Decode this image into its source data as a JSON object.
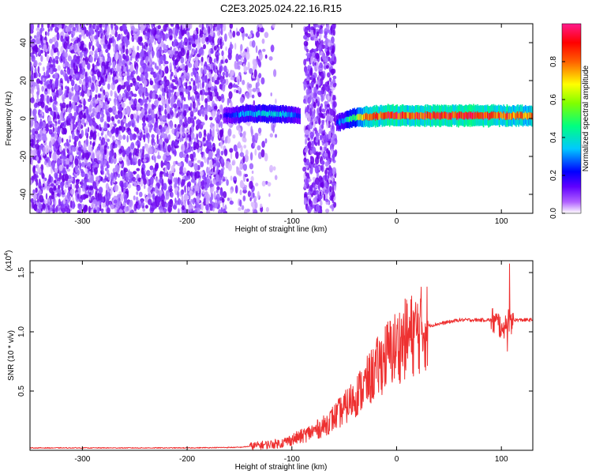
{
  "figure": {
    "title": "C2E3.2025.024.22.16.R15"
  },
  "chart_data": [
    {
      "type": "heatmap",
      "title": "C2E3.2025.024.22.16.R15",
      "xlabel": "Height of straight line (km)",
      "ylabel": "Frequency (Hz)",
      "xlim": [
        -350,
        130
      ],
      "ylim": [
        -50,
        50
      ],
      "xticks": [
        -300,
        -200,
        -100,
        0,
        100
      ],
      "xtick_labels": [
        "-300",
        "-200",
        "-100",
        "0",
        "100"
      ],
      "yticks": [
        -40,
        -20,
        0,
        20,
        40
      ],
      "ytick_labels": [
        "-40",
        "-20",
        "0",
        "20",
        "40"
      ],
      "colorbar": {
        "label": "Normalized spectral amplitude",
        "range": [
          0,
          1
        ],
        "ticks": [
          0.0,
          0.2,
          0.4,
          0.6,
          0.8
        ],
        "tick_labels": [
          "0.0",
          "0.2",
          "0.4",
          "0.6",
          "0.8"
        ],
        "colors": [
          "#ffffff",
          "#8a00ff",
          "#0000ff",
          "#00c8ff",
          "#00ff60",
          "#ffff00",
          "#ff6000",
          "#ff0000",
          "#ff1493"
        ]
      },
      "ridge": [
        {
          "x": -165,
          "y": 1.5,
          "amp": 0.25
        },
        {
          "x": -145,
          "y": 2.5,
          "amp": 0.4
        },
        {
          "x": -120,
          "y": 2.5,
          "amp": 0.45
        },
        {
          "x": -100,
          "y": 2.0,
          "amp": 0.4
        },
        {
          "x": -95,
          "y": 1.5,
          "amp": 0.3
        },
        {
          "x": -55,
          "y": -2.0,
          "amp": 0.35
        },
        {
          "x": -40,
          "y": 0.5,
          "amp": 0.6
        },
        {
          "x": -25,
          "y": 1.0,
          "amp": 0.8
        },
        {
          "x": -10,
          "y": 1.5,
          "amp": 0.9
        },
        {
          "x": 10,
          "y": 1.5,
          "amp": 0.85
        },
        {
          "x": 40,
          "y": 1.5,
          "amp": 0.9
        },
        {
          "x": 70,
          "y": 1.5,
          "amp": 0.9
        },
        {
          "x": 100,
          "y": 1.5,
          "amp": 0.85
        },
        {
          "x": 130,
          "y": 1.5,
          "amp": 0.8
        }
      ]
    },
    {
      "type": "line",
      "xlabel": "Height of straight line (km)",
      "ylabel": "SNR (10 * v/v)",
      "y_multiplier_label": "(x10",
      "y_multiplier_exp": "4",
      "y_multiplier_close": ")",
      "xlim": [
        -350,
        130
      ],
      "ylim": [
        0,
        1.6
      ],
      "xticks": [
        -300,
        -200,
        -100,
        0,
        100
      ],
      "xtick_labels": [
        "-300",
        "-200",
        "-100",
        "0",
        "100"
      ],
      "yticks": [
        0.5,
        1.0,
        1.5
      ],
      "ytick_labels": [
        "0.5",
        "1.0",
        "1.5"
      ],
      "color": "#ee3030",
      "envelope": {
        "x": [
          -350,
          -200,
          -150,
          -110,
          -90,
          -70,
          -50,
          -30,
          -10,
          10,
          30,
          60,
          90,
          100,
          110,
          130
        ],
        "y": [
          0.02,
          0.02,
          0.025,
          0.06,
          0.12,
          0.2,
          0.35,
          0.55,
          0.8,
          0.95,
          1.05,
          1.1,
          1.1,
          1.05,
          1.1,
          1.1
        ]
      }
    }
  ]
}
